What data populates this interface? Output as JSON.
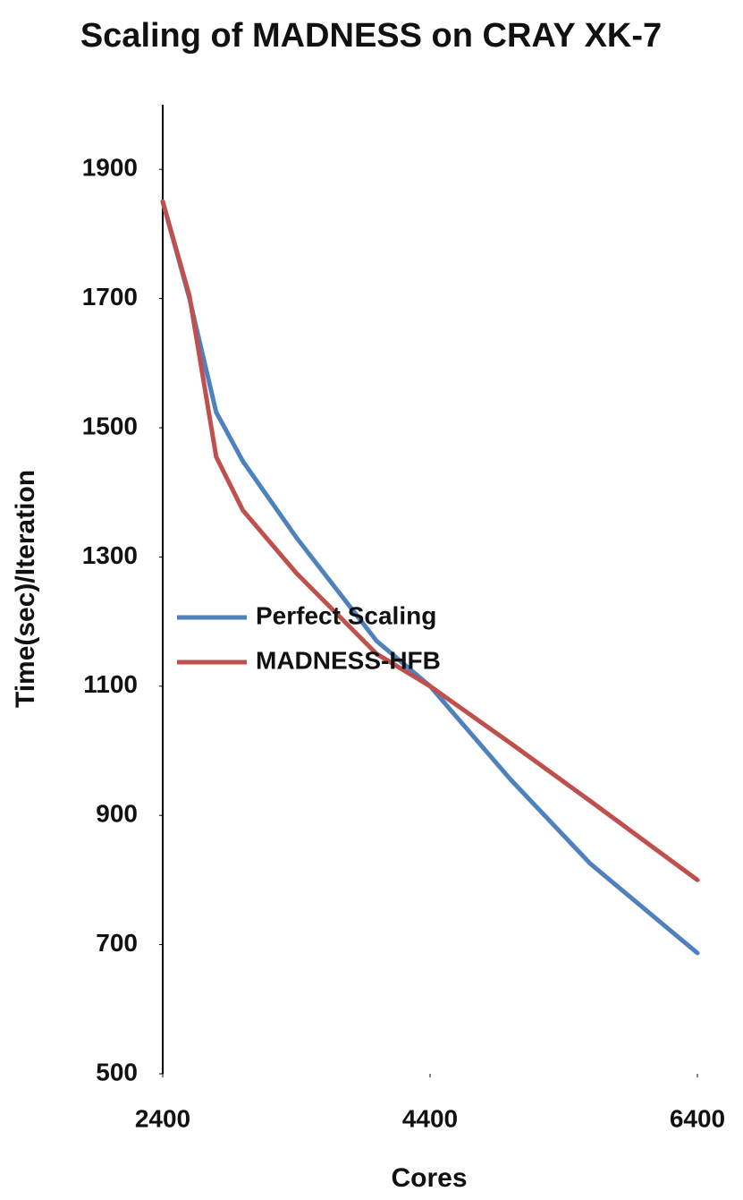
{
  "chart_data": {
    "type": "line",
    "title": "Scaling of MADNESS on CRAY XK-7",
    "x_label": "Cores",
    "y_label": "Time(sec)/Iteration",
    "x": [
      2400,
      2600,
      2800,
      3000,
      3400,
      4000,
      4400,
      5000,
      5600,
      6400
    ],
    "series": [
      {
        "name": "Perfect Scaling",
        "color": "#4f81bd",
        "values": [
          1850,
          1700,
          1524,
          1448,
          1330,
          1170,
          1100,
          956,
          825,
          687
        ]
      },
      {
        "name": "MADNESS-HFB",
        "color": "#c0504d",
        "values": [
          1850,
          1704,
          1455,
          1372,
          1275,
          1150,
          1100,
          1012,
          922,
          800
        ]
      }
    ],
    "xlim": [
      2400,
      6400
    ],
    "xticks": [
      2400,
      4400,
      6400
    ],
    "ylim": [
      500,
      2000
    ],
    "yticks": [
      500,
      700,
      900,
      1100,
      1300,
      1500,
      1700,
      1900
    ],
    "legend": "left"
  }
}
